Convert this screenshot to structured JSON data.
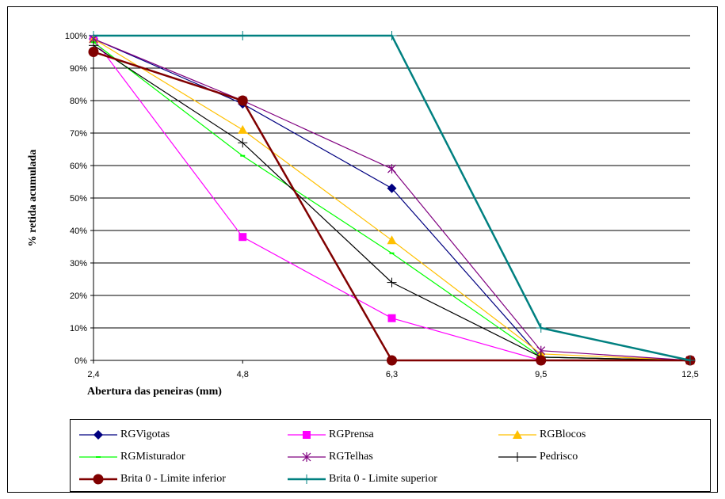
{
  "chart_data": {
    "type": "line",
    "title": "",
    "xlabel": "Abertura das peneiras (mm)",
    "ylabel": "% retida acumulada",
    "x": [
      "2,4",
      "4,8",
      "6,3",
      "9,5",
      "12,5"
    ],
    "ylim": [
      0,
      100
    ],
    "ytick_labels": [
      "0%",
      "10%",
      "20%",
      "30%",
      "40%",
      "50%",
      "60%",
      "70%",
      "80%",
      "90%",
      "100%"
    ],
    "grid": true,
    "legend_position": "bottom",
    "series": [
      {
        "name": "RGVigotas",
        "values": [
          99,
          79,
          53,
          1,
          0
        ],
        "color": "#000080",
        "marker": "diamond"
      },
      {
        "name": "RGPrensa",
        "values": [
          99,
          38,
          13,
          0,
          0
        ],
        "color": "#FF00FF",
        "marker": "square"
      },
      {
        "name": "RGBlocos",
        "values": [
          99,
          71,
          37,
          2,
          0
        ],
        "color": "#FFC000",
        "marker": "triangle"
      },
      {
        "name": "RGMisturador",
        "values": [
          98,
          63,
          33,
          1,
          0
        ],
        "color": "#00FF00",
        "marker": "dash"
      },
      {
        "name": "RGTelhas",
        "values": [
          99,
          80,
          59,
          3,
          0
        ],
        "color": "#800080",
        "marker": "star"
      },
      {
        "name": "Pedrisco",
        "values": [
          97,
          67,
          24,
          1,
          0
        ],
        "color": "#000000",
        "marker": "plus"
      },
      {
        "name": "Brita 0 - Limite inferior",
        "values": [
          95,
          80,
          0,
          0,
          0
        ],
        "color": "#800000",
        "marker": "circle"
      },
      {
        "name": "Brita 0 - Limite superior",
        "values": [
          100,
          100,
          100,
          10,
          0
        ],
        "color": "#008080",
        "marker": "plus"
      }
    ]
  }
}
